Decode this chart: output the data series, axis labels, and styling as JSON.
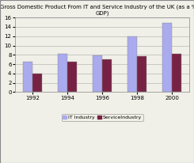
{
  "title_line1": "Gross Domestic Product From IT and Service Industry of the UK (as a % of",
  "title_line2": "GDP)",
  "years": [
    "1992",
    "1994",
    "1996",
    "1998",
    "2000"
  ],
  "it_values": [
    6.5,
    8.2,
    7.9,
    12.0,
    14.8
  ],
  "service_values": [
    4.0,
    6.5,
    7.0,
    7.7,
    8.2
  ],
  "it_color": "#aaaaee",
  "service_color": "#772244",
  "ylim": [
    0,
    16
  ],
  "yticks": [
    0,
    2,
    4,
    6,
    8,
    10,
    12,
    14,
    16
  ],
  "legend_it": "IT Industry",
  "legend_service": "ServiceIndustry",
  "bar_width": 0.28,
  "background_color": "#f0f0e8",
  "title_fontsize": 5.0,
  "tick_fontsize": 5.0,
  "legend_fontsize": 4.5,
  "outer_bg": "#f0f0e8"
}
